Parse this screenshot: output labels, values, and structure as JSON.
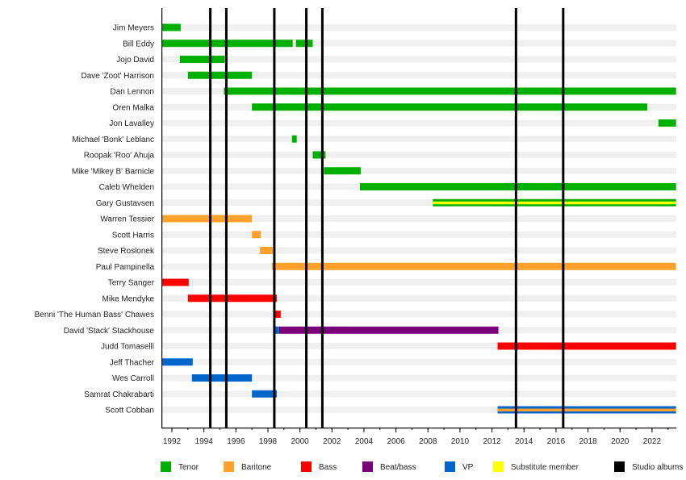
{
  "chart_data": {
    "type": "timeline",
    "title": "",
    "xlim": [
      1991.4,
      2023.5
    ],
    "x_ticks": [
      1992,
      1994,
      1996,
      1998,
      2000,
      2002,
      2004,
      2006,
      2008,
      2010,
      2012,
      2014,
      2016,
      2018,
      2020,
      2022
    ],
    "x_tick_labels": [
      "1992",
      "1994",
      "1996",
      "1998",
      "2000",
      "2002",
      "2004",
      "2006",
      "2008",
      "2010",
      "2012",
      "2014",
      "2016",
      "2018",
      "2020",
      "2022"
    ],
    "roles": {
      "tenor": {
        "label": "Tenor",
        "color": "#00b000"
      },
      "baritone": {
        "label": "Baritone",
        "color": "#ffa12a"
      },
      "bass": {
        "label": "Bass",
        "color": "#ff0000"
      },
      "beatbass": {
        "label": "Beat/bass",
        "color": "#7a007a"
      },
      "vp": {
        "label": "VP",
        "color": "#0066cc"
      },
      "substitute": {
        "label": "Substitute member",
        "color": "#ffff00"
      },
      "albums": {
        "label": "Studio albums",
        "color": "#000000"
      }
    },
    "legend_order": [
      "tenor",
      "baritone",
      "bass",
      "beatbass",
      "vp",
      "substitute",
      "albums"
    ],
    "studio_albums": [
      1994.4,
      1995.4,
      1998.4,
      2000.4,
      2001.4,
      2013.5,
      2016.45
    ],
    "members": [
      {
        "name": "Jim Meyers",
        "segments": [
          {
            "role": "tenor",
            "start": 1991.4,
            "end": 1992.55
          }
        ]
      },
      {
        "name": "Bill Eddy",
        "segments": [
          {
            "role": "tenor",
            "start": 1991.4,
            "end": 1999.55
          },
          {
            "role": "tenor",
            "start": 1999.75,
            "end": 2000.8
          }
        ]
      },
      {
        "name": "Jojo David",
        "segments": [
          {
            "role": "tenor",
            "start": 1992.5,
            "end": 1995.3
          }
        ]
      },
      {
        "name": "Dave 'Zoot' Harrison",
        "segments": [
          {
            "role": "tenor",
            "start": 1993.0,
            "end": 1997.0
          }
        ]
      },
      {
        "name": "Dan Lennon",
        "segments": [
          {
            "role": "tenor",
            "start": 1995.25,
            "end": 2023.5
          }
        ]
      },
      {
        "name": "Oren Malka",
        "segments": [
          {
            "role": "tenor",
            "start": 1997.0,
            "end": 2021.7
          }
        ]
      },
      {
        "name": "Jon Lavalley",
        "segments": [
          {
            "role": "tenor",
            "start": 2022.4,
            "end": 2023.5
          }
        ]
      },
      {
        "name": "Michael 'Bonk' Leblanc",
        "segments": [
          {
            "role": "tenor",
            "start": 1999.5,
            "end": 1999.8
          }
        ]
      },
      {
        "name": "Roopak 'Roo' Ahuja",
        "segments": [
          {
            "role": "tenor",
            "start": 2000.8,
            "end": 2001.6
          }
        ]
      },
      {
        "name": "Mike 'Mikey B' Barnicle",
        "segments": [
          {
            "role": "tenor",
            "start": 2001.5,
            "end": 2003.8
          }
        ]
      },
      {
        "name": "Caleb Whelden",
        "segments": [
          {
            "role": "tenor",
            "start": 2003.75,
            "end": 2023.5
          }
        ]
      },
      {
        "name": "Gary Gustavsen",
        "segments": [
          {
            "role": "tenor",
            "start": 2008.3,
            "end": 2023.5,
            "inner": "substitute"
          }
        ]
      },
      {
        "name": "Warren Tessier",
        "segments": [
          {
            "role": "baritone",
            "start": 1991.4,
            "end": 1997.0
          }
        ]
      },
      {
        "name": "Scott Harris",
        "segments": [
          {
            "role": "baritone",
            "start": 1997.0,
            "end": 1997.55
          }
        ]
      },
      {
        "name": "Steve Roslonek",
        "segments": [
          {
            "role": "baritone",
            "start": 1997.5,
            "end": 1998.3
          }
        ]
      },
      {
        "name": "Paul Pampinella",
        "segments": [
          {
            "role": "baritone",
            "start": 1998.25,
            "end": 2023.5
          }
        ]
      },
      {
        "name": "Terry Sanger",
        "segments": [
          {
            "role": "bass",
            "start": 1991.4,
            "end": 1993.05
          }
        ]
      },
      {
        "name": "Mike Mendyke",
        "segments": [
          {
            "role": "bass",
            "start": 1993.0,
            "end": 1998.55
          }
        ]
      },
      {
        "name": "Benni 'The Human Bass' Chawes",
        "segments": [
          {
            "role": "bass",
            "start": 1998.45,
            "end": 1998.8
          }
        ]
      },
      {
        "name": "David 'Stack' Stackhouse",
        "segments": [
          {
            "role": "vp",
            "start": 1998.45,
            "end": 1998.7
          },
          {
            "role": "beatbass",
            "start": 1998.7,
            "end": 2012.4
          }
        ]
      },
      {
        "name": "Judd Tomaselli",
        "segments": [
          {
            "role": "bass",
            "start": 2012.35,
            "end": 2023.5
          }
        ]
      },
      {
        "name": "Jeff Thacher",
        "segments": [
          {
            "role": "vp",
            "start": 1991.4,
            "end": 1993.3
          }
        ]
      },
      {
        "name": "Wes Carroll",
        "segments": [
          {
            "role": "vp",
            "start": 1993.25,
            "end": 1997.0
          }
        ]
      },
      {
        "name": "Samrat Chakrabarti",
        "segments": [
          {
            "role": "vp",
            "start": 1997.0,
            "end": 1998.55
          }
        ]
      },
      {
        "name": "Scott Cobban",
        "segments": [
          {
            "role": "vp",
            "start": 2012.35,
            "end": 2023.5,
            "inner": "baritone"
          }
        ]
      }
    ]
  }
}
